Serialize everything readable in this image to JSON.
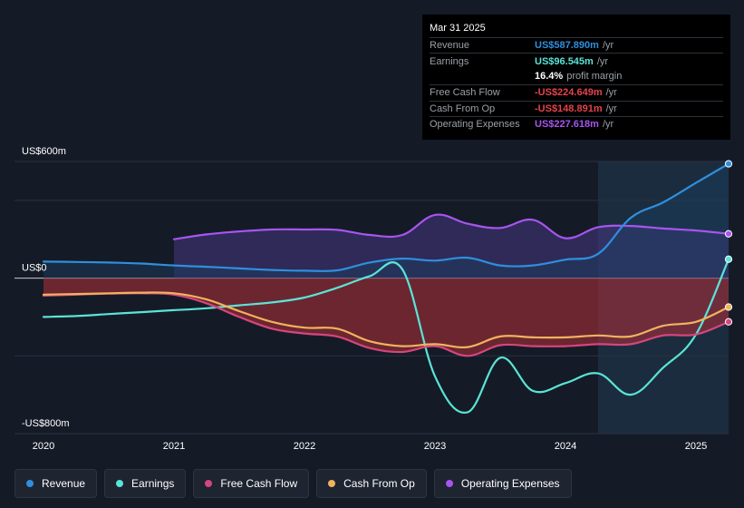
{
  "tooltip": {
    "date": "Mar 31 2025",
    "rows": [
      {
        "label": "Revenue",
        "value": "US$587.890m",
        "unit": "/yr",
        "color": "#2f8fde"
      },
      {
        "label": "Earnings",
        "value": "US$96.545m",
        "unit": "/yr",
        "color": "#5ae4d8"
      },
      {
        "label": "",
        "value": "16.4%",
        "unit": "profit margin",
        "color": "#ffffff"
      },
      {
        "label": "Free Cash Flow",
        "value": "-US$224.649m",
        "unit": "/yr",
        "color": "#e5434a"
      },
      {
        "label": "Cash From Op",
        "value": "-US$148.891m",
        "unit": "/yr",
        "color": "#e5434a"
      },
      {
        "label": "Operating Expenses",
        "value": "US$227.618m",
        "unit": "/yr",
        "color": "#a755f0"
      }
    ]
  },
  "legend": [
    {
      "label": "Revenue",
      "color": "#2f8fde"
    },
    {
      "label": "Earnings",
      "color": "#5ae4d8"
    },
    {
      "label": "Free Cash Flow",
      "color": "#d4467e"
    },
    {
      "label": "Cash From Op",
      "color": "#f0b35e"
    },
    {
      "label": "Operating Expenses",
      "color": "#a755f0"
    }
  ],
  "chart_data": {
    "type": "line",
    "title": "",
    "xlabel": "",
    "ylabel": "",
    "unit": "US$m",
    "ylim": [
      -800,
      600
    ],
    "xlim": [
      2020.0,
      2025.25
    ],
    "y_tick_labels": [
      {
        "value": 600,
        "label": "US$600m"
      },
      {
        "value": 0,
        "label": "US$0"
      },
      {
        "value": -800,
        "label": "-US$800m"
      }
    ],
    "x_ticks": [
      {
        "value": 2020,
        "label": "2020"
      },
      {
        "value": 2021,
        "label": "2021"
      },
      {
        "value": 2022,
        "label": "2022"
      },
      {
        "value": 2023,
        "label": "2023"
      },
      {
        "value": 2024,
        "label": "2024"
      },
      {
        "value": 2025,
        "label": "2025"
      }
    ],
    "forecast_start": 2024.25,
    "series": [
      {
        "name": "Operating Expenses",
        "key": "opex",
        "color": "#a755f0",
        "fill": true,
        "fillColor": "#4a3a8a",
        "x": [
          2021.0,
          2021.25,
          2021.5,
          2021.75,
          2022.0,
          2022.25,
          2022.5,
          2022.75,
          2023.0,
          2023.25,
          2023.5,
          2023.75,
          2024.0,
          2024.25,
          2024.5,
          2024.75,
          2025.0,
          2025.25
        ],
        "y": [
          200,
          225,
          240,
          250,
          250,
          248,
          222,
          222,
          325,
          280,
          258,
          300,
          205,
          262,
          268,
          255,
          245,
          228
        ]
      },
      {
        "name": "Revenue",
        "key": "revenue",
        "color": "#2f8fde",
        "fill": true,
        "fillColor": "#1c3b5e",
        "x": [
          2020.0,
          2020.25,
          2020.5,
          2020.75,
          2021.0,
          2021.25,
          2021.5,
          2021.75,
          2022.0,
          2022.25,
          2022.5,
          2022.75,
          2023.0,
          2023.25,
          2023.5,
          2023.75,
          2024.0,
          2024.25,
          2024.5,
          2024.75,
          2025.0,
          2025.25
        ],
        "y": [
          85,
          83,
          80,
          75,
          65,
          58,
          50,
          42,
          38,
          40,
          80,
          100,
          90,
          105,
          65,
          65,
          95,
          125,
          310,
          390,
          490,
          588
        ]
      },
      {
        "name": "Earnings",
        "key": "earnings",
        "color": "#5ae4d8",
        "fill": false,
        "x": [
          2020.0,
          2020.25,
          2020.5,
          2020.75,
          2021.0,
          2021.25,
          2021.5,
          2021.75,
          2022.0,
          2022.25,
          2022.5,
          2022.75,
          2023.0,
          2023.25,
          2023.5,
          2023.75,
          2024.0,
          2024.25,
          2024.5,
          2024.75,
          2025.0,
          2025.25
        ],
        "y": [
          -200,
          -195,
          -185,
          -175,
          -165,
          -155,
          -140,
          -125,
          -100,
          -50,
          10,
          45,
          -505,
          -690,
          -410,
          -580,
          -540,
          -490,
          -600,
          -460,
          -290,
          97
        ]
      },
      {
        "name": "Free Cash Flow",
        "key": "fcf",
        "color": "#d4467e",
        "fill": true,
        "fillColor": "#b52f38",
        "x": [
          2020.0,
          2020.25,
          2020.5,
          2020.75,
          2021.0,
          2021.25,
          2021.5,
          2021.75,
          2022.0,
          2022.25,
          2022.5,
          2022.75,
          2023.0,
          2023.25,
          2023.5,
          2023.75,
          2024.0,
          2024.25,
          2024.5,
          2024.75,
          2025.0,
          2025.25
        ],
        "y": [
          -90,
          -85,
          -80,
          -78,
          -85,
          -130,
          -200,
          -260,
          -285,
          -300,
          -360,
          -380,
          -350,
          -400,
          -345,
          -350,
          -350,
          -340,
          -340,
          -295,
          -290,
          -225
        ]
      },
      {
        "name": "Cash From Op",
        "key": "cfo",
        "color": "#f0b35e",
        "fill": false,
        "x": [
          2020.0,
          2020.25,
          2020.5,
          2020.75,
          2021.0,
          2021.25,
          2021.5,
          2021.75,
          2022.0,
          2022.25,
          2022.5,
          2022.75,
          2023.0,
          2023.25,
          2023.5,
          2023.75,
          2024.0,
          2024.25,
          2024.5,
          2024.75,
          2025.0,
          2025.25
        ],
        "y": [
          -85,
          -82,
          -78,
          -75,
          -78,
          -110,
          -170,
          -225,
          -255,
          -260,
          -325,
          -350,
          -340,
          -355,
          -300,
          -305,
          -305,
          -295,
          -300,
          -245,
          -225,
          -149
        ]
      }
    ]
  }
}
